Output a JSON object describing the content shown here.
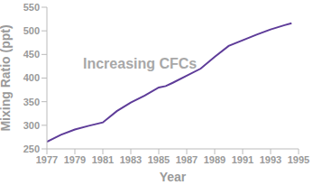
{
  "chart_data": {
    "type": "line",
    "annotation": "Increasing CFCs",
    "x_label": "Year",
    "y_label": "Mixing Ratio (ppt)",
    "x": [
      1977,
      1978,
      1979,
      1980,
      1981,
      1982,
      1983,
      1984,
      1985,
      1985.5,
      1986,
      1987,
      1988,
      1989,
      1990,
      1991,
      1992,
      1993,
      1994,
      1994.5
    ],
    "values": [
      265,
      280,
      291,
      299,
      306,
      330,
      348,
      363,
      380,
      383,
      390,
      405,
      420,
      445,
      468,
      480,
      492,
      503,
      512,
      516
    ],
    "color": "#5e3c99",
    "xlim": [
      1977,
      1995
    ],
    "xticks": [
      1977,
      1979,
      1981,
      1983,
      1985,
      1987,
      1989,
      1991,
      1993,
      1995
    ],
    "ylim": [
      250,
      550
    ],
    "yticks": [
      250,
      300,
      350,
      400,
      450,
      500,
      550
    ],
    "grid": false
  }
}
